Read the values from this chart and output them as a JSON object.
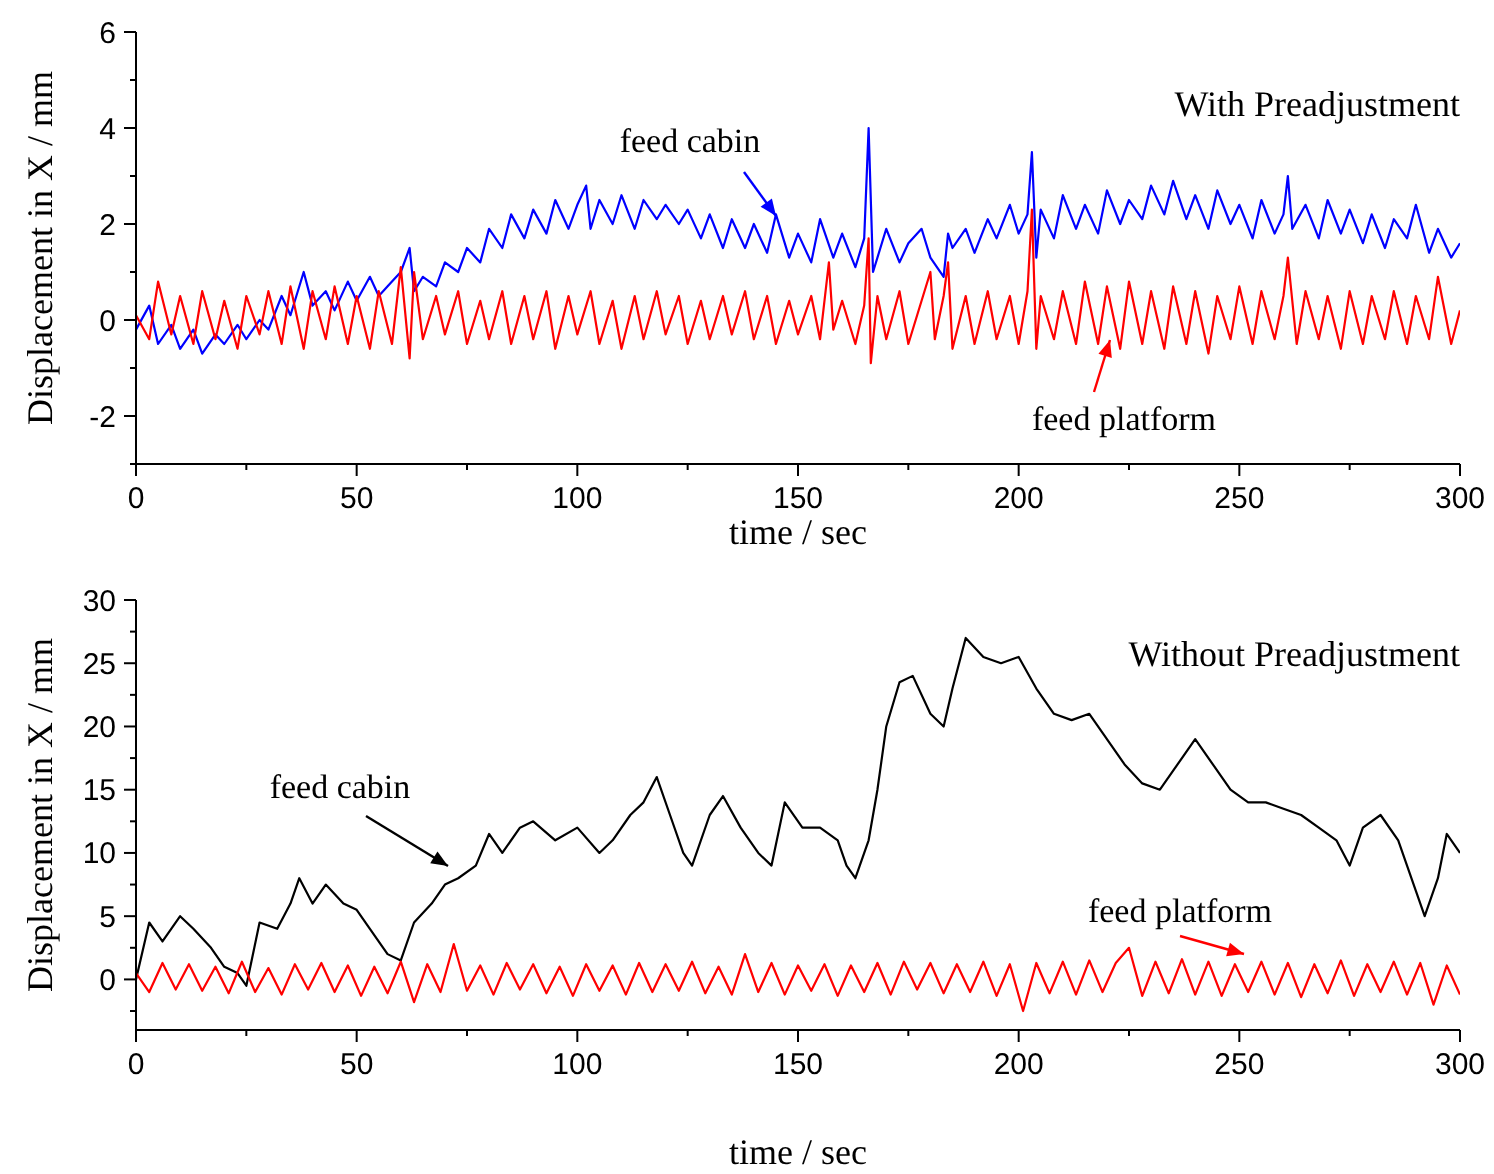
{
  "chart_data": [
    {
      "type": "line",
      "title": "With Preadjustment",
      "xlabel": "time / sec",
      "ylabel": "Displacement in X / mm",
      "xlim": [
        0,
        300
      ],
      "xticks": [
        0,
        50,
        100,
        150,
        200,
        250,
        300
      ],
      "ylim": [
        -3,
        6
      ],
      "yticks": [
        -2,
        0,
        2,
        4,
        6
      ],
      "series": [
        {
          "name": "feed cabin",
          "color": "#0000ff",
          "x": [
            0,
            3,
            5,
            8,
            10,
            13,
            15,
            18,
            20,
            23,
            25,
            28,
            30,
            33,
            35,
            38,
            40,
            43,
            45,
            48,
            50,
            53,
            55,
            58,
            60,
            62,
            63,
            65,
            68,
            70,
            73,
            75,
            78,
            80,
            83,
            85,
            88,
            90,
            93,
            95,
            98,
            100,
            102,
            103,
            105,
            108,
            110,
            113,
            115,
            118,
            120,
            123,
            125,
            128,
            130,
            133,
            135,
            138,
            140,
            143,
            145,
            148,
            150,
            153,
            155,
            158,
            160,
            163,
            165,
            166,
            167,
            170,
            173,
            175,
            178,
            180,
            183,
            184,
            185,
            188,
            190,
            193,
            195,
            198,
            200,
            202,
            203,
            204,
            205,
            208,
            210,
            213,
            215,
            218,
            220,
            223,
            225,
            228,
            230,
            233,
            235,
            238,
            240,
            243,
            245,
            248,
            250,
            253,
            255,
            258,
            260,
            261,
            262,
            265,
            268,
            270,
            273,
            275,
            278,
            280,
            283,
            285,
            288,
            290,
            293,
            295,
            298,
            300
          ],
          "values": [
            -0.2,
            0.3,
            -0.5,
            -0.1,
            -0.6,
            -0.2,
            -0.7,
            -0.3,
            -0.5,
            -0.1,
            -0.4,
            0,
            -0.2,
            0.5,
            0.1,
            1,
            0.3,
            0.6,
            0.2,
            0.8,
            0.4,
            0.9,
            0.5,
            0.8,
            1,
            1.5,
            0.6,
            0.9,
            0.7,
            1.2,
            1,
            1.5,
            1.2,
            1.9,
            1.5,
            2.2,
            1.7,
            2.3,
            1.8,
            2.5,
            1.9,
            2.4,
            2.8,
            1.9,
            2.5,
            2,
            2.6,
            1.9,
            2.5,
            2.1,
            2.4,
            2,
            2.3,
            1.7,
            2.2,
            1.5,
            2.1,
            1.5,
            2,
            1.4,
            2.2,
            1.3,
            1.8,
            1.2,
            2.1,
            1.3,
            1.8,
            1.1,
            1.7,
            4,
            1,
            1.9,
            1.2,
            1.6,
            1.9,
            1.3,
            0.9,
            1.8,
            1.5,
            1.9,
            1.4,
            2.1,
            1.7,
            2.4,
            1.8,
            2.2,
            3.5,
            1.3,
            2.3,
            1.7,
            2.6,
            1.9,
            2.4,
            1.8,
            2.7,
            2,
            2.5,
            2.1,
            2.8,
            2.2,
            2.9,
            2.1,
            2.6,
            1.9,
            2.7,
            2,
            2.4,
            1.7,
            2.5,
            1.8,
            2.2,
            3,
            1.9,
            2.4,
            1.7,
            2.5,
            1.8,
            2.3,
            1.6,
            2.2,
            1.5,
            2.1,
            1.7,
            2.4,
            1.4,
            1.9,
            1.3,
            1.6
          ]
        },
        {
          "name": "feed platform",
          "color": "#ff0000",
          "x": [
            0,
            3,
            5,
            8,
            10,
            13,
            15,
            18,
            20,
            23,
            25,
            28,
            30,
            33,
            35,
            38,
            40,
            43,
            45,
            48,
            50,
            53,
            55,
            58,
            60,
            62,
            63,
            65,
            68,
            70,
            73,
            75,
            78,
            80,
            83,
            85,
            88,
            90,
            93,
            95,
            98,
            100,
            103,
            105,
            108,
            110,
            113,
            115,
            118,
            120,
            123,
            125,
            128,
            130,
            133,
            135,
            138,
            140,
            143,
            145,
            148,
            150,
            153,
            155,
            157,
            158,
            160,
            163,
            165,
            166,
            166.5,
            168,
            170,
            173,
            175,
            178,
            180,
            181,
            183,
            184,
            185,
            188,
            190,
            193,
            195,
            198,
            200,
            202,
            203,
            204,
            205,
            208,
            210,
            213,
            215,
            218,
            220,
            223,
            225,
            228,
            230,
            233,
            235,
            238,
            240,
            243,
            245,
            248,
            250,
            253,
            255,
            258,
            260,
            261,
            263,
            265,
            268,
            270,
            273,
            275,
            278,
            280,
            283,
            285,
            288,
            290,
            293,
            295,
            298,
            300
          ],
          "values": [
            0.1,
            -0.4,
            0.8,
            -0.3,
            0.5,
            -0.5,
            0.6,
            -0.4,
            0.4,
            -0.6,
            0.5,
            -0.3,
            0.6,
            -0.5,
            0.7,
            -0.6,
            0.6,
            -0.4,
            0.7,
            -0.5,
            0.5,
            -0.6,
            0.6,
            -0.5,
            1.1,
            -0.8,
            1,
            -0.4,
            0.5,
            -0.3,
            0.6,
            -0.5,
            0.4,
            -0.4,
            0.6,
            -0.5,
            0.5,
            -0.4,
            0.6,
            -0.6,
            0.5,
            -0.3,
            0.6,
            -0.5,
            0.4,
            -0.6,
            0.5,
            -0.4,
            0.6,
            -0.3,
            0.5,
            -0.5,
            0.4,
            -0.4,
            0.5,
            -0.3,
            0.6,
            -0.4,
            0.5,
            -0.5,
            0.4,
            -0.3,
            0.5,
            -0.4,
            1.2,
            -0.2,
            0.4,
            -0.5,
            0.3,
            1.7,
            -0.9,
            0.5,
            -0.4,
            0.6,
            -0.5,
            0.4,
            1,
            -0.4,
            0.5,
            1.2,
            -0.6,
            0.5,
            -0.5,
            0.6,
            -0.4,
            0.5,
            -0.5,
            0.6,
            2.3,
            -0.6,
            0.5,
            -0.4,
            0.6,
            -0.5,
            0.8,
            -0.5,
            0.7,
            -0.6,
            0.8,
            -0.5,
            0.6,
            -0.6,
            0.7,
            -0.5,
            0.6,
            -0.7,
            0.5,
            -0.4,
            0.7,
            -0.5,
            0.6,
            -0.4,
            0.5,
            1.3,
            -0.5,
            0.6,
            -0.4,
            0.5,
            -0.6,
            0.6,
            -0.5,
            0.5,
            -0.4,
            0.6,
            -0.5,
            0.5,
            -0.4,
            0.9,
            -0.5,
            0.2
          ]
        }
      ]
    },
    {
      "type": "line",
      "title": "Without Preadjustment",
      "xlabel": "time / sec",
      "ylabel": "Displacement in X / mm",
      "xlim": [
        0,
        300
      ],
      "xticks": [
        0,
        50,
        100,
        150,
        200,
        250,
        300
      ],
      "ylim": [
        -4,
        30
      ],
      "yticks": [
        0,
        5,
        10,
        15,
        20,
        25,
        30
      ],
      "series": [
        {
          "name": "feed cabin",
          "color": "#000000",
          "x": [
            0,
            3,
            6,
            10,
            13,
            17,
            20,
            23,
            25,
            28,
            32,
            35,
            37,
            40,
            43,
            47,
            50,
            53,
            57,
            60,
            63,
            67,
            70,
            73,
            77,
            80,
            83,
            87,
            90,
            95,
            100,
            105,
            108,
            112,
            115,
            118,
            121,
            124,
            126,
            130,
            133,
            137,
            141,
            144,
            147,
            151,
            155,
            159,
            161,
            163,
            166,
            168,
            170,
            173,
            176,
            180,
            183,
            185,
            188,
            192,
            196,
            200,
            204,
            208,
            212,
            216,
            220,
            224,
            228,
            232,
            236,
            240,
            244,
            248,
            252,
            256,
            260,
            264,
            268,
            272,
            275,
            278,
            282,
            286,
            290,
            292,
            295,
            297,
            300
          ],
          "values": [
            0,
            4.5,
            3,
            5,
            4,
            2.5,
            1,
            0.5,
            -0.5,
            4.5,
            4,
            6,
            8,
            6,
            7.5,
            6,
            5.5,
            4,
            2,
            1.5,
            4.5,
            6,
            7.5,
            8,
            9,
            11.5,
            10,
            12,
            12.5,
            11,
            12,
            10,
            11,
            13,
            14,
            16,
            13,
            10,
            9,
            13,
            14.5,
            12,
            10,
            9,
            14,
            12,
            12,
            11,
            9,
            8,
            11,
            15,
            20,
            23.5,
            24,
            21,
            20,
            23,
            27,
            25.5,
            25,
            25.5,
            23,
            21,
            20.5,
            21,
            19,
            17,
            15.5,
            15,
            17,
            19,
            17,
            15,
            14,
            14,
            13.5,
            13,
            12,
            11,
            9,
            12,
            13,
            11,
            7,
            5,
            8,
            11.5,
            10
          ]
        },
        {
          "name": "feed platform",
          "color": "#ff0000",
          "x": [
            0,
            3,
            6,
            9,
            12,
            15,
            18,
            21,
            24,
            27,
            30,
            33,
            36,
            39,
            42,
            45,
            48,
            51,
            54,
            57,
            60,
            63,
            66,
            69,
            72,
            75,
            78,
            81,
            84,
            87,
            90,
            93,
            96,
            99,
            102,
            105,
            108,
            111,
            114,
            117,
            120,
            123,
            126,
            129,
            132,
            135,
            138,
            141,
            144,
            147,
            150,
            153,
            156,
            159,
            162,
            165,
            168,
            171,
            174,
            177,
            180,
            183,
            186,
            189,
            192,
            195,
            198,
            201,
            204,
            207,
            210,
            213,
            216,
            219,
            222,
            225,
            228,
            231,
            234,
            237,
            240,
            243,
            246,
            249,
            252,
            255,
            258,
            261,
            264,
            267,
            270,
            273,
            276,
            279,
            282,
            285,
            288,
            291,
            294,
            297,
            300
          ],
          "values": [
            0.5,
            -1,
            1.3,
            -0.8,
            1.2,
            -0.9,
            1,
            -1.1,
            1.4,
            -1,
            0.9,
            -1.2,
            1.2,
            -0.8,
            1.3,
            -1,
            1.1,
            -1.3,
            1,
            -1.1,
            1.4,
            -1.8,
            1.2,
            -1,
            2.8,
            -0.9,
            1.1,
            -1.2,
            1.3,
            -0.8,
            1.2,
            -1.1,
            1,
            -1.3,
            1.2,
            -0.9,
            1.1,
            -1.2,
            1.3,
            -1,
            1.2,
            -0.9,
            1.4,
            -1.1,
            1,
            -1.2,
            2,
            -1,
            1.3,
            -1.2,
            1.1,
            -0.9,
            1.2,
            -1.3,
            1.1,
            -1,
            1.3,
            -1.2,
            1.4,
            -0.8,
            1.3,
            -1.1,
            1.2,
            -1,
            1.4,
            -1.3,
            1.2,
            -2.5,
            1.3,
            -1.1,
            1.4,
            -1.2,
            1.5,
            -1,
            1.3,
            2.5,
            -1.3,
            1.4,
            -1.1,
            1.6,
            -1.2,
            1.4,
            -1.3,
            1.2,
            -1,
            1.4,
            -1.2,
            1.3,
            -1.4,
            1.2,
            -1.1,
            1.5,
            -1.3,
            1.2,
            -1,
            1.4,
            -1.2,
            1.3,
            -2,
            1.1,
            -1.2
          ]
        }
      ]
    }
  ]
}
